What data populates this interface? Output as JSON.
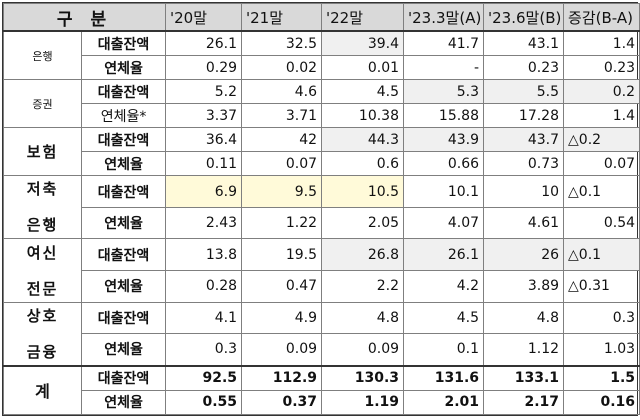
{
  "header": {
    "category": "구 분",
    "columns": [
      "'20말",
      "'21말",
      "'22말",
      "'23.3말(A)",
      "'23.6말(B)",
      "증감(B-A)"
    ]
  },
  "groups": [
    {
      "institution": "은행",
      "rows": [
        {
          "metric": "대출잔액",
          "values": [
            "26.1",
            "32.5",
            "39.4",
            "41.7",
            "43.1"
          ],
          "change": "1.4"
        },
        {
          "metric": "연체율",
          "values": [
            "0.29",
            "0.02",
            "0.01",
            "-",
            "0.23"
          ],
          "change": "0.23"
        }
      ]
    },
    {
      "institution": "증권",
      "rows": [
        {
          "metric": "대출잔액",
          "values": [
            "5.2",
            "4.6",
            "4.5",
            "5.3",
            "5.5"
          ],
          "change": "0.2"
        },
        {
          "metric": "연체율*",
          "values": [
            "3.37",
            "3.71",
            "10.38",
            "15.88",
            "17.28"
          ],
          "change": "1.4"
        }
      ]
    },
    {
      "institution": "보험",
      "rows": [
        {
          "metric": "대출잔액",
          "values": [
            "36.4",
            "42",
            "44.3",
            "43.9",
            "43.7"
          ],
          "change": "△0.2"
        },
        {
          "metric": "연체율",
          "values": [
            "0.11",
            "0.07",
            "0.6",
            "0.66",
            "0.73"
          ],
          "change": "0.07"
        }
      ]
    },
    {
      "institution_lines": [
        "저축",
        "은행"
      ],
      "rows": [
        {
          "metric": "대출잔액",
          "values": [
            "6.9",
            "9.5",
            "10.5",
            "10.1",
            "10"
          ],
          "change": "△0.1"
        },
        {
          "metric": "연체율",
          "values": [
            "2.43",
            "1.22",
            "2.05",
            "4.07",
            "4.61"
          ],
          "change": "0.54"
        }
      ]
    },
    {
      "institution_lines": [
        "여신",
        "전문"
      ],
      "rows": [
        {
          "metric": "대출잔액",
          "values": [
            "13.8",
            "19.5",
            "26.8",
            "26.1",
            "26"
          ],
          "change": "△0.1"
        },
        {
          "metric": "연체율",
          "values": [
            "0.28",
            "0.47",
            "2.2",
            "4.2",
            "3.89"
          ],
          "change": "△0.31"
        }
      ]
    },
    {
      "institution_lines": [
        "상호",
        "금융"
      ],
      "rows": [
        {
          "metric": "대출잔액",
          "values": [
            "4.1",
            "4.9",
            "4.8",
            "4.5",
            "4.8"
          ],
          "change": "0.3"
        },
        {
          "metric": "연체율",
          "values": [
            "0.3",
            "0.09",
            "0.09",
            "0.1",
            "1.12"
          ],
          "change": "1.03"
        }
      ]
    },
    {
      "institution": "계",
      "rows": [
        {
          "metric": "대출잔액",
          "values": [
            "92.5",
            "112.9",
            "130.3",
            "131.6",
            "133.1"
          ],
          "change": "1.5"
        },
        {
          "metric": "연체율",
          "values": [
            "0.55",
            "0.37",
            "1.19",
            "2.01",
            "2.17"
          ],
          "change": "0.16"
        }
      ]
    }
  ]
}
